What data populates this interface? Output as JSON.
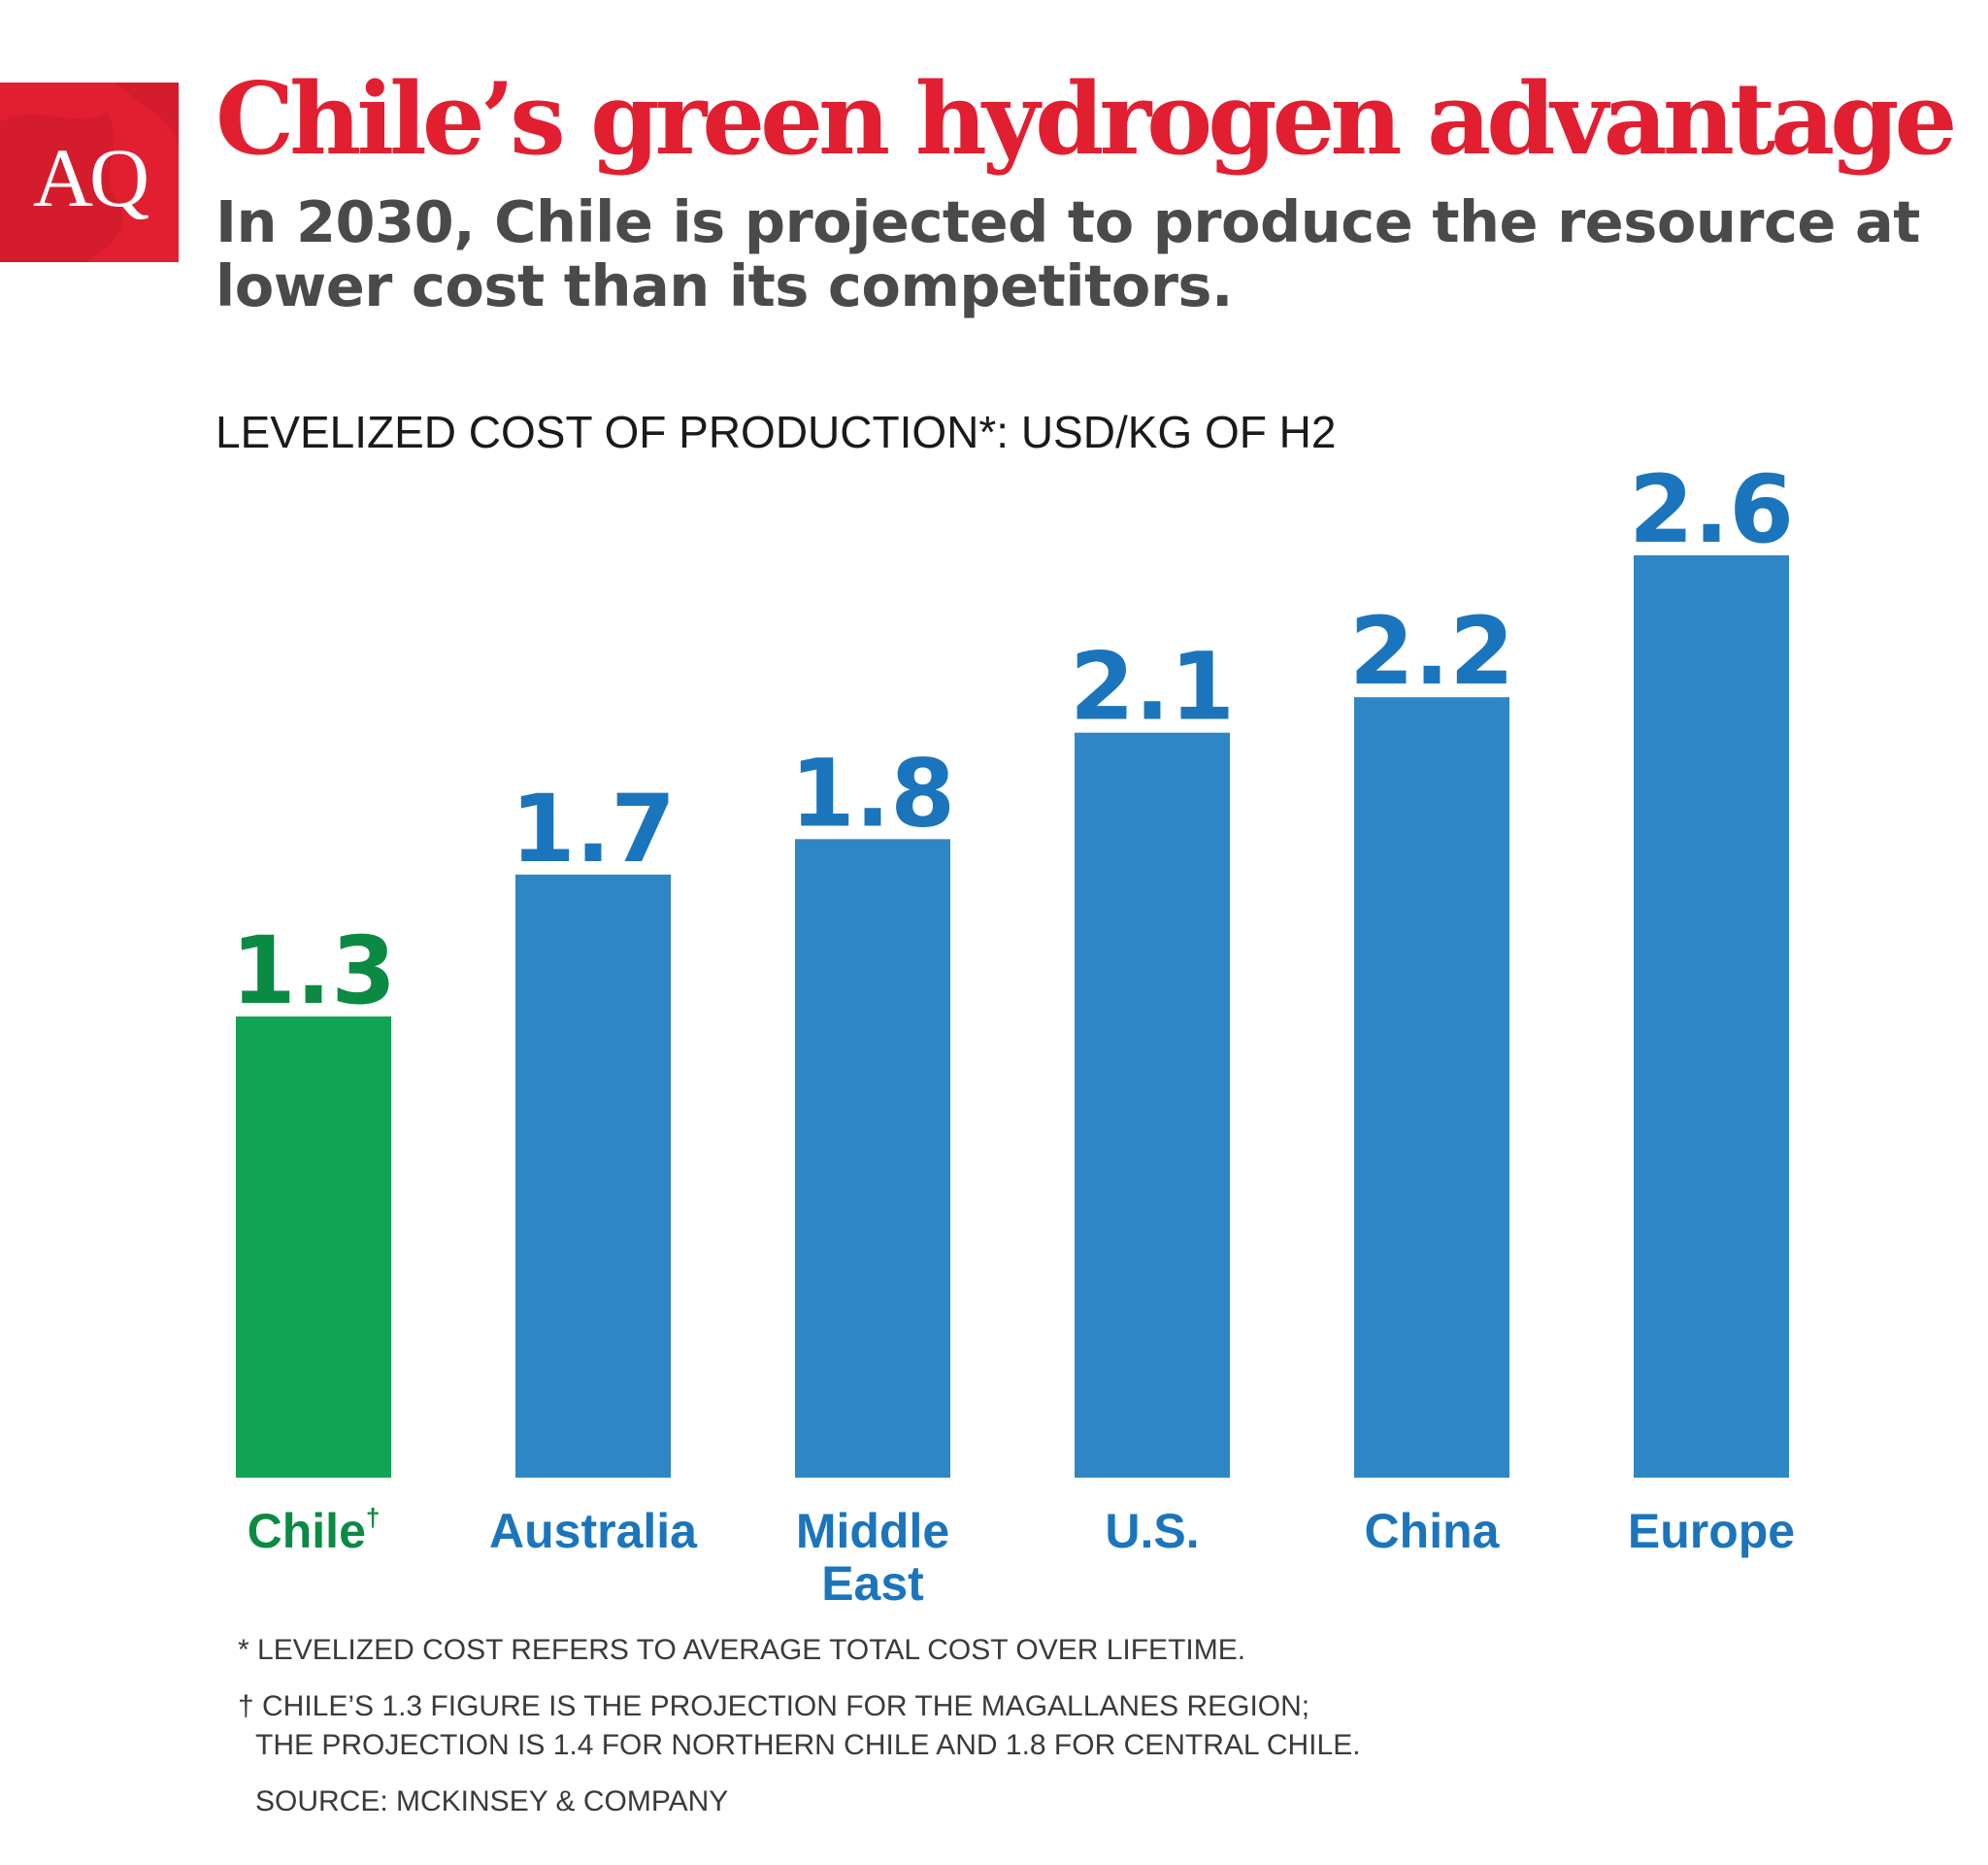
{
  "logo": {
    "text": "AQ",
    "color": "#e11f31"
  },
  "title": "Chile’s green hydrogen advantage",
  "subtitle": "In 2030, Chile is projected to produce the resource at lower cost than its competitors.",
  "colors": {
    "highlight": "#11a454",
    "highlight_text": "#0b8a43",
    "bar": "#2e86c4",
    "bar_text": "#1b75bc",
    "title": "#e11f31",
    "subtitle": "#4a4a4a"
  },
  "chart_data": {
    "type": "bar",
    "title": "LEVELIZED COST OF PRODUCTION*: USD/KG OF H2",
    "categories": [
      "Chile",
      "Australia",
      "Middle East",
      "U.S.",
      "China",
      "Europe"
    ],
    "category_marks": [
      "†",
      "",
      "",
      "",
      "",
      ""
    ],
    "values": [
      1.3,
      1.7,
      1.8,
      2.1,
      2.2,
      2.6
    ],
    "value_labels": [
      "1.3",
      "1.7",
      "1.8",
      "2.1",
      "2.2",
      "2.6"
    ],
    "highlight_index": 0,
    "ylim": [
      0,
      2.6
    ],
    "grid": false,
    "legend": "none"
  },
  "footnotes": {
    "levelized": "* LEVELIZED COST REFERS TO AVERAGE TOTAL COST OVER LIFETIME.",
    "chile_line1": "† CHILE’S 1.3 FIGURE IS THE PROJECTION FOR THE MAGALLANES REGION;",
    "chile_line2": "THE PROJECTION IS 1.4 FOR NORTHERN CHILE AND 1.8 FOR CENTRAL CHILE.",
    "source": "SOURCE: MCKINSEY & COMPANY"
  }
}
